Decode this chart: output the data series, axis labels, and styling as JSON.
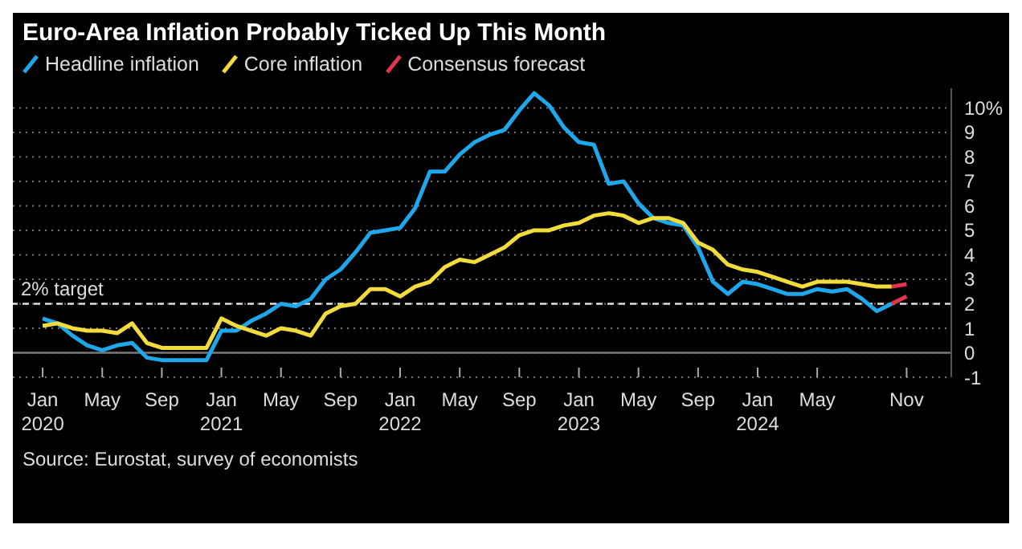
{
  "chart_data": {
    "type": "line",
    "title": "Euro-Area Inflation Probably Ticked Up This Month",
    "annotations": [
      "Source: Eurostat, survey of economists"
    ],
    "x": [
      "2020-01",
      "2020-02",
      "2020-03",
      "2020-04",
      "2020-05",
      "2020-06",
      "2020-07",
      "2020-08",
      "2020-09",
      "2020-10",
      "2020-11",
      "2020-12",
      "2021-01",
      "2021-02",
      "2021-03",
      "2021-04",
      "2021-05",
      "2021-06",
      "2021-07",
      "2021-08",
      "2021-09",
      "2021-10",
      "2021-11",
      "2021-12",
      "2022-01",
      "2022-02",
      "2022-03",
      "2022-04",
      "2022-05",
      "2022-06",
      "2022-07",
      "2022-08",
      "2022-09",
      "2022-10",
      "2022-11",
      "2022-12",
      "2023-01",
      "2023-02",
      "2023-03",
      "2023-04",
      "2023-05",
      "2023-06",
      "2023-07",
      "2023-08",
      "2023-09",
      "2023-10",
      "2023-11",
      "2023-12",
      "2024-01",
      "2024-02",
      "2024-03",
      "2024-04",
      "2024-05",
      "2024-06",
      "2024-07",
      "2024-08",
      "2024-09",
      "2024-10"
    ],
    "series": [
      {
        "name": "Headline inflation",
        "color": "#1ea7ea",
        "values": [
          1.4,
          1.2,
          0.7,
          0.3,
          0.1,
          0.3,
          0.4,
          -0.2,
          -0.3,
          -0.3,
          -0.3,
          -0.3,
          0.9,
          0.9,
          1.3,
          1.6,
          2.0,
          1.9,
          2.2,
          3.0,
          3.4,
          4.1,
          4.9,
          5.0,
          5.1,
          5.9,
          7.4,
          7.4,
          8.1,
          8.6,
          8.9,
          9.1,
          9.9,
          10.6,
          10.1,
          9.2,
          8.6,
          8.5,
          6.9,
          7.0,
          6.1,
          5.5,
          5.3,
          5.2,
          4.3,
          2.9,
          2.4,
          2.9,
          2.8,
          2.6,
          2.4,
          2.4,
          2.6,
          2.5,
          2.6,
          2.2,
          1.7,
          2.0
        ]
      },
      {
        "name": "Core inflation",
        "color": "#f2dc3c",
        "values": [
          1.1,
          1.2,
          1.0,
          0.9,
          0.9,
          0.8,
          1.2,
          0.4,
          0.2,
          0.2,
          0.2,
          0.2,
          1.4,
          1.1,
          0.9,
          0.7,
          1.0,
          0.9,
          0.7,
          1.6,
          1.9,
          2.0,
          2.6,
          2.6,
          2.3,
          2.7,
          2.9,
          3.5,
          3.8,
          3.7,
          4.0,
          4.3,
          4.8,
          5.0,
          5.0,
          5.2,
          5.3,
          5.6,
          5.7,
          5.6,
          5.3,
          5.5,
          5.5,
          5.3,
          4.5,
          4.2,
          3.6,
          3.4,
          3.3,
          3.1,
          2.9,
          2.7,
          2.9,
          2.9,
          2.9,
          2.8,
          2.7,
          2.7
        ]
      },
      {
        "name": "Consensus forecast",
        "color": "#e0344f",
        "x": [
          "2024-10",
          "2024-11"
        ],
        "values": [
          2.0,
          2.3
        ]
      },
      {
        "color": "#e0344f",
        "x": [
          "2024-10",
          "2024-11"
        ],
        "values": [
          2.7,
          2.8
        ]
      }
    ],
    "xlim": [
      "2019-11",
      "2025-02"
    ],
    "xticks": [
      {
        "value": "2020-01",
        "label": "Jan\n2020"
      },
      {
        "value": "2020-05",
        "label": "May"
      },
      {
        "value": "2020-09",
        "label": "Sep"
      },
      {
        "value": "2021-01",
        "label": "Jan\n2021"
      },
      {
        "value": "2021-05",
        "label": "May"
      },
      {
        "value": "2021-09",
        "label": "Sep"
      },
      {
        "value": "2022-01",
        "label": "Jan\n2022"
      },
      {
        "value": "2022-05",
        "label": "May"
      },
      {
        "value": "2022-09",
        "label": "Sep"
      },
      {
        "value": "2023-01",
        "label": "Jan\n2023"
      },
      {
        "value": "2023-05",
        "label": "May"
      },
      {
        "value": "2023-09",
        "label": "Sep"
      },
      {
        "value": "2024-01",
        "label": "Jan\n2024"
      },
      {
        "value": "2024-05",
        "label": "May"
      },
      {
        "value": "2024-11",
        "label": "Nov"
      }
    ],
    "ylim": [
      -1,
      10.8
    ],
    "yticks": [
      -1,
      0,
      1,
      2,
      3,
      4,
      5,
      6,
      7,
      8,
      9,
      {
        "value": 10,
        "label": "10%"
      }
    ],
    "ref_lines": [
      {
        "axis": "y",
        "value": 2,
        "label": "2% target",
        "color": "#dddddd",
        "line_style": "dashed"
      },
      {
        "axis": "y",
        "value": 0,
        "label": null,
        "color": "#777777",
        "line_style": "solid"
      }
    ],
    "grid": "y",
    "legend": "top left",
    "marker": "none",
    "line_style": "solid"
  }
}
